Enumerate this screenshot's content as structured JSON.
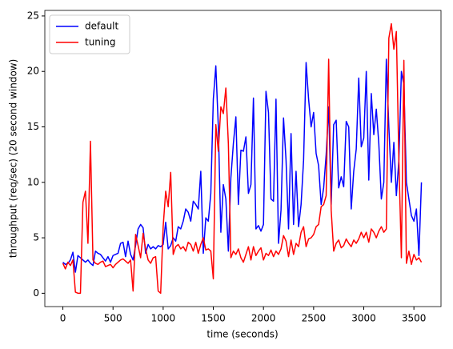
{
  "chart_data": {
    "type": "line",
    "xlabel": "time (seconds)",
    "ylabel": "throughput (req/sec) (20 second window)",
    "x": [
      0,
      25,
      50,
      75,
      100,
      125,
      150,
      175,
      200,
      225,
      250,
      275,
      300,
      325,
      350,
      375,
      400,
      425,
      450,
      475,
      500,
      525,
      550,
      575,
      600,
      625,
      650,
      675,
      700,
      725,
      750,
      775,
      800,
      825,
      850,
      875,
      900,
      925,
      950,
      975,
      1000,
      1025,
      1050,
      1075,
      1100,
      1125,
      1150,
      1175,
      1200,
      1225,
      1250,
      1275,
      1300,
      1325,
      1350,
      1375,
      1400,
      1425,
      1450,
      1475,
      1500,
      1525,
      1550,
      1575,
      1600,
      1625,
      1650,
      1675,
      1700,
      1725,
      1750,
      1775,
      1800,
      1825,
      1850,
      1875,
      1900,
      1925,
      1950,
      1975,
      2000,
      2025,
      2050,
      2075,
      2100,
      2125,
      2150,
      2175,
      2200,
      2225,
      2250,
      2275,
      2300,
      2325,
      2350,
      2375,
      2400,
      2425,
      2450,
      2475,
      2500,
      2525,
      2550,
      2575,
      2600,
      2625,
      2650,
      2675,
      2700,
      2725,
      2750,
      2775,
      2800,
      2825,
      2850,
      2875,
      2900,
      2925,
      2950,
      2975,
      3000,
      3025,
      3050,
      3075,
      3100,
      3125,
      3150,
      3175,
      3200,
      3225,
      3250,
      3275,
      3300,
      3325,
      3350,
      3375,
      3400,
      3425,
      3450,
      3475,
      3500,
      3525,
      3550,
      3575
    ],
    "series": [
      {
        "name": "default",
        "color": "#0000ff",
        "values": [
          2.8,
          2.6,
          2.7,
          3.0,
          3.7,
          1.9,
          3.4,
          3.2,
          3.0,
          2.8,
          3.0,
          2.7,
          2.5,
          3.8,
          3.6,
          3.5,
          3.2,
          2.9,
          3.3,
          2.8,
          3.4,
          3.5,
          3.6,
          4.5,
          4.6,
          3.3,
          4.7,
          3.5,
          3.0,
          4.3,
          5.8,
          6.2,
          5.9,
          3.6,
          4.4,
          4.0,
          4.2,
          4.0,
          4.3,
          4.2,
          4.4,
          6.4,
          4.0,
          4.3,
          5.0,
          4.7,
          6.0,
          5.8,
          6.5,
          7.6,
          7.3,
          6.5,
          8.3,
          8.0,
          7.6,
          11.0,
          3.6,
          6.8,
          6.5,
          9.0,
          17.5,
          20.5,
          15.0,
          5.5,
          9.8,
          8.5,
          3.8,
          10.4,
          13.5,
          15.9,
          8.0,
          12.9,
          12.8,
          14.1,
          9.0,
          9.8,
          17.6,
          5.8,
          6.1,
          5.6,
          6.2,
          18.2,
          16.3,
          8.5,
          8.3,
          17.5,
          4.5,
          7.5,
          15.8,
          12.0,
          5.8,
          14.4,
          6.2,
          11.0,
          6.0,
          8.0,
          12.0,
          20.8,
          17.5,
          15.0,
          16.3,
          12.6,
          11.5,
          8.0,
          9.5,
          12.5,
          16.8,
          8.0,
          15.2,
          15.6,
          9.5,
          10.5,
          9.6,
          15.5,
          15.0,
          7.6,
          11.0,
          13.0,
          19.4,
          13.2,
          14.0,
          20.0,
          10.2,
          18.0,
          14.3,
          16.6,
          13.5,
          8.5,
          10.0,
          21.1,
          15.0,
          10.0,
          13.6,
          8.8,
          12.0,
          20.0,
          18.8,
          10.0,
          8.5,
          7.0,
          6.5,
          7.6,
          3.4,
          10.0
        ]
      },
      {
        "name": "tuning",
        "color": "#ff0000",
        "values": [
          2.7,
          2.2,
          2.8,
          2.5,
          3.0,
          0.1,
          0.0,
          0.0,
          8.2,
          9.2,
          4.5,
          13.7,
          3.0,
          2.7,
          2.6,
          2.8,
          2.9,
          2.4,
          2.5,
          2.6,
          2.3,
          2.6,
          2.8,
          3.0,
          3.1,
          2.9,
          2.7,
          3.0,
          0.2,
          5.3,
          4.3,
          3.2,
          5.4,
          4.0,
          3.0,
          2.7,
          3.2,
          3.3,
          0.2,
          0.0,
          6.0,
          9.2,
          7.8,
          10.9,
          3.5,
          4.2,
          4.4,
          4.0,
          4.2,
          3.8,
          4.6,
          4.4,
          3.8,
          4.6,
          3.6,
          4.4,
          5.0,
          3.9,
          4.0,
          3.8,
          1.3,
          15.2,
          12.8,
          16.8,
          16.2,
          18.5,
          13.5,
          3.2,
          3.8,
          3.5,
          4.0,
          3.2,
          2.8,
          3.5,
          4.2,
          3.0,
          4.2,
          3.4,
          3.8,
          4.1,
          3.0,
          3.6,
          3.4,
          3.9,
          3.3,
          3.8,
          3.5,
          4.0,
          5.2,
          4.7,
          3.3,
          4.8,
          3.5,
          4.5,
          4.2,
          5.5,
          6.0,
          4.2,
          4.9,
          5.0,
          5.3,
          6.0,
          6.2,
          7.8,
          8.0,
          8.8,
          21.1,
          7.5,
          3.8,
          4.5,
          4.8,
          4.1,
          4.3,
          4.9,
          4.5,
          4.2,
          4.8,
          4.5,
          4.9,
          5.5,
          5.0,
          5.5,
          4.6,
          5.8,
          5.5,
          5.0,
          5.6,
          6.0,
          5.5,
          5.8,
          23.0,
          24.3,
          22.0,
          23.6,
          12.0,
          3.2,
          21.0,
          2.7,
          3.8,
          2.6,
          3.5,
          3.0,
          3.2,
          2.8
        ]
      }
    ],
    "xlim": [
      -180,
      3770
    ],
    "xticks": [
      0,
      500,
      1000,
      1500,
      2000,
      2500,
      3000,
      3500
    ],
    "ylim": [
      -1.2,
      25.5
    ],
    "yticks": [
      0,
      5,
      10,
      15,
      20,
      25
    ],
    "legend": "upper left"
  }
}
